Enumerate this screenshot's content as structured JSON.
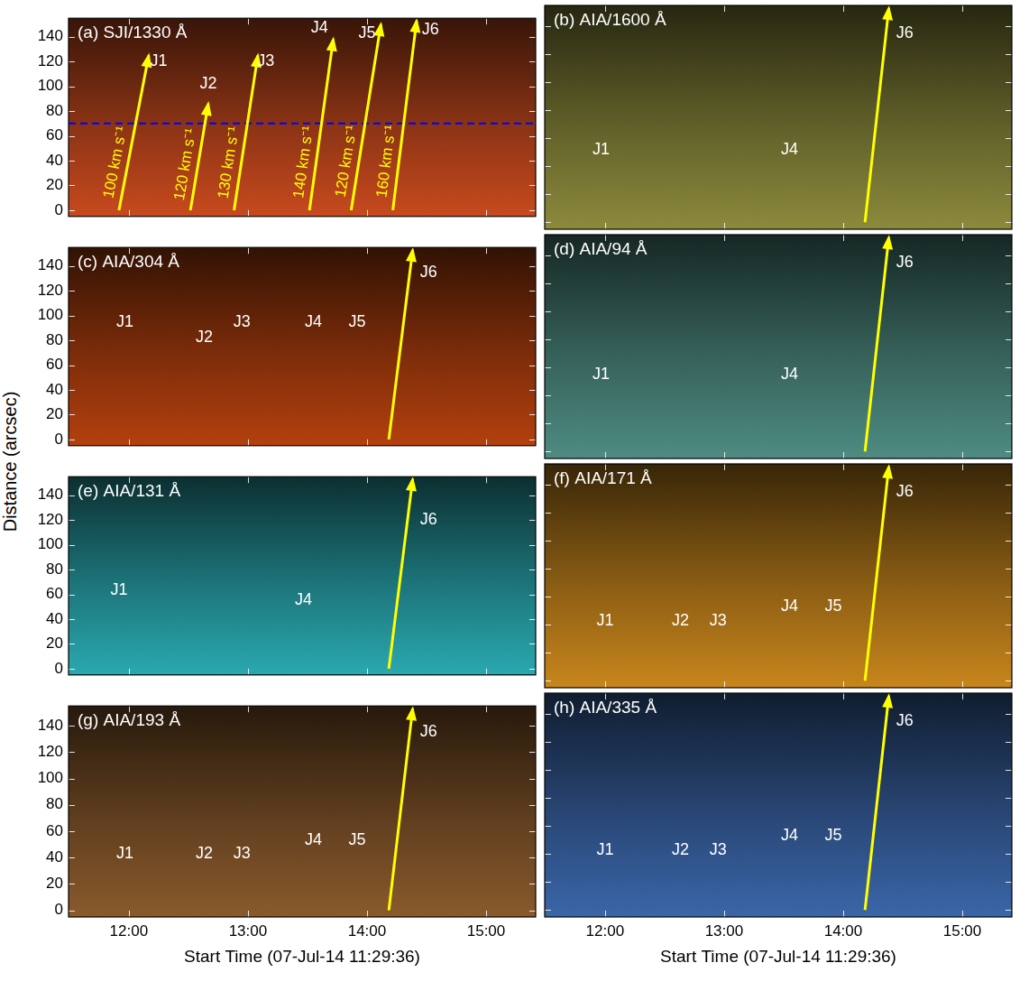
{
  "ylabel": "Distance (arcsec)",
  "chart_data": [
    {
      "type": "line",
      "title": "(a) SJI/1330 Å",
      "color": "#c84a1e",
      "xlim": [
        "11:29:36",
        "15:25:00"
      ],
      "xticks": [
        "12:00",
        "13:00",
        "14:00",
        "15:00"
      ],
      "ylim": [
        -5,
        155
      ],
      "yticks": [
        0,
        20,
        40,
        60,
        80,
        100,
        120,
        140
      ],
      "grid": false,
      "tick_labels": "y",
      "series": [
        {
          "x": [
            "11:55:00",
            "12:10:00"
          ],
          "values": [
            0,
            125
          ],
          "color": "#ffff00",
          "line_style": "arrow",
          "label": "100 km s⁻¹"
        },
        {
          "x": [
            "12:31:00",
            "12:40:00"
          ],
          "values": [
            0,
            86
          ],
          "color": "#ffff00",
          "line_style": "arrow",
          "label": "120 km s⁻¹"
        },
        {
          "x": [
            "12:53:00",
            "13:05:00"
          ],
          "values": [
            0,
            125
          ],
          "color": "#ffff00",
          "line_style": "arrow",
          "label": "130 km s⁻¹"
        },
        {
          "x": [
            "13:31:00",
            "13:43:00"
          ],
          "values": [
            0,
            138
          ],
          "color": "#ffff00",
          "line_style": "arrow",
          "label": "140 km s⁻¹"
        },
        {
          "x": [
            "13:52:00",
            "14:07:00"
          ],
          "values": [
            0,
            150
          ],
          "color": "#ffff00",
          "line_style": "arrow",
          "label": "120 km s⁻¹"
        },
        {
          "x": [
            "14:13:00",
            "14:25:00"
          ],
          "values": [
            0,
            153
          ],
          "color": "#ffff00",
          "line_style": "arrow",
          "label": "160 km s⁻¹"
        }
      ],
      "reference_lines": [
        {
          "y": 70,
          "color": "#0000ff",
          "line_style": "dashed"
        }
      ],
      "annotations": [
        {
          "text": "J1",
          "x": "12:15:00",
          "y": 120
        },
        {
          "text": "J2",
          "x": "12:40:00",
          "y": 102
        },
        {
          "text": "J3",
          "x": "13:09:00",
          "y": 120
        },
        {
          "text": "J4",
          "x": "13:36:00",
          "y": 147
        },
        {
          "text": "J5",
          "x": "14:00:00",
          "y": 143
        },
        {
          "text": "J6",
          "x": "14:32:00",
          "y": 146
        }
      ]
    },
    {
      "type": "line",
      "title": "(b) AIA/1600 Å",
      "color": "#8c8a3c",
      "xlim": [
        "11:29:36",
        "15:25:00"
      ],
      "xticks": [
        "12:00",
        "13:00",
        "14:00",
        "15:00"
      ],
      "ylim": [
        -5,
        155
      ],
      "yticks": [
        0,
        20,
        40,
        60,
        80,
        100,
        120,
        140
      ],
      "grid": false,
      "tick_labels": false,
      "series": [
        {
          "x": [
            "14:11:00",
            "14:23:00"
          ],
          "values": [
            0,
            153
          ],
          "color": "#ffff00",
          "line_style": "arrow"
        }
      ],
      "annotations": [
        {
          "text": "J1",
          "x": "11:58:00",
          "y": 52
        },
        {
          "text": "J4",
          "x": "13:33:00",
          "y": 52
        },
        {
          "text": "J6",
          "x": "14:31:00",
          "y": 135
        }
      ]
    },
    {
      "type": "line",
      "title": "(c) AIA/304 Å",
      "color": "#b4400e",
      "xlim": [
        "11:29:36",
        "15:25:00"
      ],
      "xticks": [
        "12:00",
        "13:00",
        "14:00",
        "15:00"
      ],
      "ylim": [
        -5,
        155
      ],
      "yticks": [
        0,
        20,
        40,
        60,
        80,
        100,
        120,
        140
      ],
      "grid": false,
      "tick_labels": "y",
      "series": [
        {
          "x": [
            "14:11:00",
            "14:23:00"
          ],
          "values": [
            0,
            153
          ],
          "color": "#ffff00",
          "line_style": "arrow"
        }
      ],
      "annotations": [
        {
          "text": "J1",
          "x": "11:58:00",
          "y": 95
        },
        {
          "text": "J2",
          "x": "12:38:00",
          "y": 82
        },
        {
          "text": "J3",
          "x": "12:57:00",
          "y": 95
        },
        {
          "text": "J4",
          "x": "13:33:00",
          "y": 95
        },
        {
          "text": "J5",
          "x": "13:55:00",
          "y": 95
        },
        {
          "text": "J6",
          "x": "14:31:00",
          "y": 135
        }
      ]
    },
    {
      "type": "line",
      "title": "(d) AIA/94 Å",
      "color": "#4e8c82",
      "xlim": [
        "11:29:36",
        "15:25:00"
      ],
      "xticks": [
        "12:00",
        "13:00",
        "14:00",
        "15:00"
      ],
      "ylim": [
        -5,
        155
      ],
      "yticks": [
        0,
        20,
        40,
        60,
        80,
        100,
        120,
        140
      ],
      "grid": false,
      "tick_labels": false,
      "series": [
        {
          "x": [
            "14:11:00",
            "14:23:00"
          ],
          "values": [
            0,
            153
          ],
          "color": "#ffff00",
          "line_style": "arrow"
        }
      ],
      "annotations": [
        {
          "text": "J1",
          "x": "11:58:00",
          "y": 55
        },
        {
          "text": "J4",
          "x": "13:33:00",
          "y": 55
        },
        {
          "text": "J6",
          "x": "14:31:00",
          "y": 135
        }
      ]
    },
    {
      "type": "line",
      "title": "(e) AIA/131 Å",
      "color": "#2aa8b0",
      "xlim": [
        "11:29:36",
        "15:25:00"
      ],
      "xticks": [
        "12:00",
        "13:00",
        "14:00",
        "15:00"
      ],
      "ylim": [
        -5,
        155
      ],
      "yticks": [
        0,
        20,
        40,
        60,
        80,
        100,
        120,
        140
      ],
      "grid": false,
      "tick_labels": "y",
      "series": [
        {
          "x": [
            "14:11:00",
            "14:23:00"
          ],
          "values": [
            0,
            153
          ],
          "color": "#ffff00",
          "line_style": "arrow"
        }
      ],
      "annotations": [
        {
          "text": "J1",
          "x": "11:55:00",
          "y": 63
        },
        {
          "text": "J4",
          "x": "13:28:00",
          "y": 55
        },
        {
          "text": "J6",
          "x": "14:31:00",
          "y": 120
        }
      ]
    },
    {
      "type": "line",
      "title": "(f) AIA/171 Å",
      "color": "#c8861c",
      "xlim": [
        "11:29:36",
        "15:25:00"
      ],
      "xticks": [
        "12:00",
        "13:00",
        "14:00",
        "15:00"
      ],
      "ylim": [
        -5,
        155
      ],
      "yticks": [
        0,
        20,
        40,
        60,
        80,
        100,
        120,
        140
      ],
      "grid": false,
      "tick_labels": false,
      "series": [
        {
          "x": [
            "14:11:00",
            "14:23:00"
          ],
          "values": [
            0,
            153
          ],
          "color": "#ffff00",
          "line_style": "arrow"
        }
      ],
      "annotations": [
        {
          "text": "J1",
          "x": "12:00:00",
          "y": 43
        },
        {
          "text": "J2",
          "x": "12:38:00",
          "y": 43
        },
        {
          "text": "J3",
          "x": "12:57:00",
          "y": 43
        },
        {
          "text": "J4",
          "x": "13:33:00",
          "y": 53
        },
        {
          "text": "J5",
          "x": "13:55:00",
          "y": 53
        },
        {
          "text": "J6",
          "x": "14:31:00",
          "y": 135
        }
      ]
    },
    {
      "type": "line",
      "title": "(g) AIA/193 Å",
      "color": "#8a5a2c",
      "xlim": [
        "11:29:36",
        "15:25:00"
      ],
      "xticks": [
        "12:00",
        "13:00",
        "14:00",
        "15:00"
      ],
      "ylim": [
        -5,
        155
      ],
      "yticks": [
        0,
        20,
        40,
        60,
        80,
        100,
        120,
        140
      ],
      "grid": false,
      "tick_labels": true,
      "xlabel": "Start Time (07-Jul-14 11:29:36)",
      "series": [
        {
          "x": [
            "14:11:00",
            "14:23:00"
          ],
          "values": [
            0,
            153
          ],
          "color": "#ffff00",
          "line_style": "arrow"
        }
      ],
      "annotations": [
        {
          "text": "J1",
          "x": "11:58:00",
          "y": 43
        },
        {
          "text": "J2",
          "x": "12:38:00",
          "y": 43
        },
        {
          "text": "J3",
          "x": "12:57:00",
          "y": 43
        },
        {
          "text": "J4",
          "x": "13:33:00",
          "y": 53
        },
        {
          "text": "J5",
          "x": "13:55:00",
          "y": 53
        },
        {
          "text": "J6",
          "x": "14:31:00",
          "y": 135
        }
      ]
    },
    {
      "type": "line",
      "title": "(h) AIA/335 Å",
      "color": "#3a66a8",
      "xlim": [
        "11:29:36",
        "15:25:00"
      ],
      "xticks": [
        "12:00",
        "13:00",
        "14:00",
        "15:00"
      ],
      "ylim": [
        -5,
        155
      ],
      "yticks": [
        0,
        20,
        40,
        60,
        80,
        100,
        120,
        140
      ],
      "grid": false,
      "tick_labels": "x",
      "xlabel": "Start Time (07-Jul-14 11:29:36)",
      "series": [
        {
          "x": [
            "14:11:00",
            "14:23:00"
          ],
          "values": [
            0,
            153
          ],
          "color": "#ffff00",
          "line_style": "arrow"
        }
      ],
      "annotations": [
        {
          "text": "J1",
          "x": "12:00:00",
          "y": 43
        },
        {
          "text": "J2",
          "x": "12:38:00",
          "y": 43
        },
        {
          "text": "J3",
          "x": "12:57:00",
          "y": 43
        },
        {
          "text": "J4",
          "x": "13:33:00",
          "y": 53
        },
        {
          "text": "J5",
          "x": "13:55:00",
          "y": 53
        },
        {
          "text": "J6",
          "x": "14:31:00",
          "y": 135
        }
      ]
    }
  ]
}
